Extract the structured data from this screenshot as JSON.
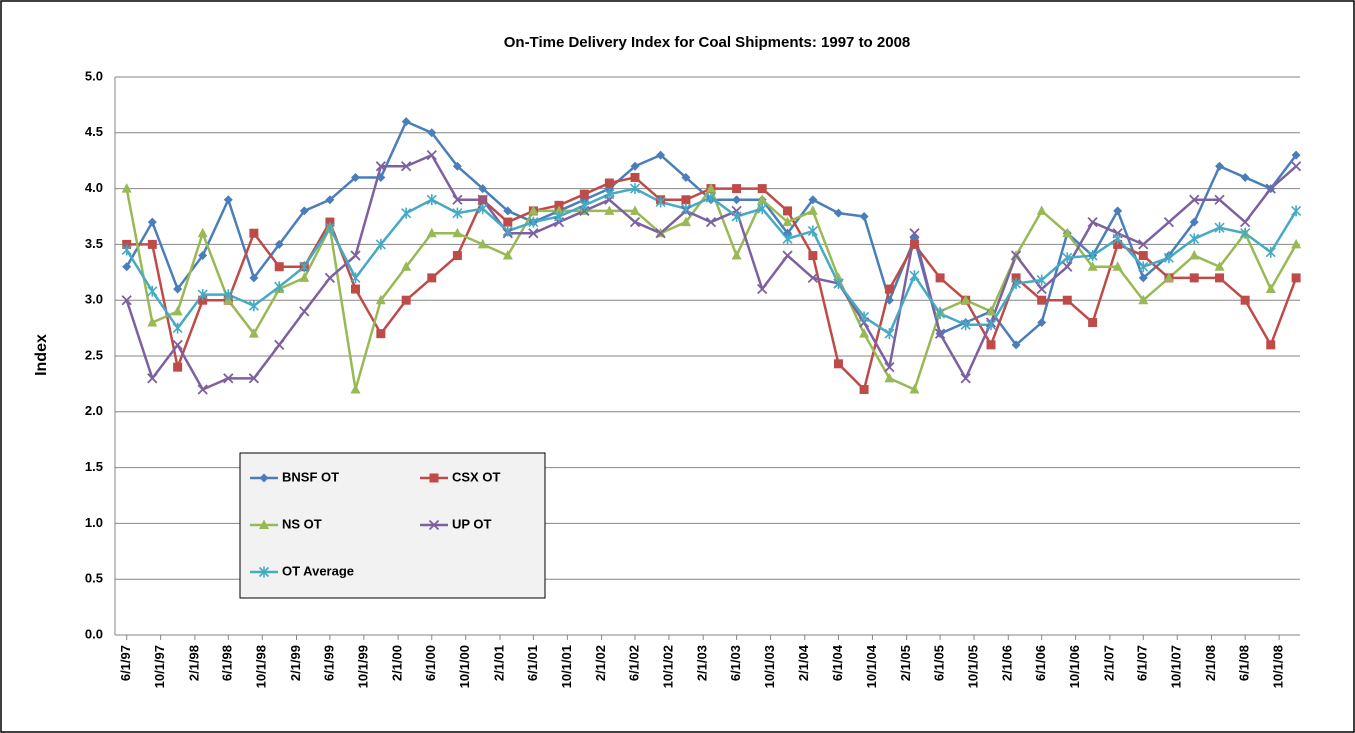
{
  "chart_data": {
    "type": "line",
    "title": "On-Time Delivery Index for Coal Shipments: 1997 to 2008",
    "y_label": "Index",
    "x": [
      "6/1/97",
      "9/1/97",
      "12/1/97",
      "3/1/98",
      "6/1/98",
      "9/1/98",
      "12/1/98",
      "3/1/99",
      "6/1/99",
      "9/1/99",
      "12/1/99",
      "3/1/00",
      "6/1/00",
      "9/1/00",
      "12/1/00",
      "3/1/01",
      "6/1/01",
      "9/1/01",
      "12/1/01",
      "3/1/02",
      "6/1/02",
      "9/1/02",
      "12/1/02",
      "3/1/03",
      "6/1/03",
      "9/1/03",
      "12/1/03",
      "3/1/04",
      "6/1/04",
      "9/1/04",
      "12/1/04",
      "3/1/05",
      "6/1/05",
      "9/1/05",
      "12/1/05",
      "3/1/06",
      "6/1/06",
      "9/1/06",
      "12/1/06",
      "3/1/07",
      "6/1/07",
      "9/1/07",
      "12/1/07",
      "3/1/08",
      "6/1/08",
      "9/1/08",
      "12/1/08"
    ],
    "xlim": [
      "4/20/97",
      "12/15/08"
    ],
    "xticks": [
      "6/1/97",
      "10/1/97",
      "2/1/98",
      "6/1/98",
      "10/1/98",
      "2/1/99",
      "6/1/99",
      "10/1/99",
      "2/1/00",
      "6/1/00",
      "10/1/00",
      "2/1/01",
      "6/1/01",
      "10/1/01",
      "2/1/02",
      "6/1/02",
      "10/1/02",
      "2/1/03",
      "6/1/03",
      "10/1/03",
      "2/1/04",
      "6/1/04",
      "10/1/04",
      "2/1/05",
      "6/1/05",
      "10/1/05",
      "2/1/06",
      "6/1/06",
      "10/1/06",
      "2/1/07",
      "6/1/07",
      "10/1/07",
      "2/1/08",
      "6/1/08",
      "10/1/08"
    ],
    "ylim": [
      0,
      5
    ],
    "yticks": [
      {
        "value": 0,
        "label": "0.0"
      },
      {
        "value": 0.5,
        "label": "0.5"
      },
      {
        "value": 1,
        "label": "1.0"
      },
      {
        "value": 1.5,
        "label": "1.5"
      },
      {
        "value": 2,
        "label": "2.0"
      },
      {
        "value": 2.5,
        "label": "2.5"
      },
      {
        "value": 3,
        "label": "3.0"
      },
      {
        "value": 3.5,
        "label": "3.5"
      },
      {
        "value": 4,
        "label": "4.0"
      },
      {
        "value": 4.5,
        "label": "4.5"
      },
      {
        "value": 5,
        "label": "5.0"
      }
    ],
    "grid": true,
    "legend_position": "lower left",
    "series": [
      {
        "name": "BNSF OT",
        "color": "#4a7ebb",
        "marker": "diamond",
        "values": [
          3.3,
          3.7,
          3.1,
          3.4,
          3.9,
          3.2,
          3.5,
          3.8,
          3.9,
          4.1,
          4.1,
          4.6,
          4.5,
          4.2,
          4.0,
          3.8,
          3.7,
          3.8,
          3.9,
          4.0,
          4.2,
          4.3,
          4.1,
          3.9,
          3.9,
          3.9,
          3.6,
          3.9,
          3.78,
          3.75,
          3.0,
          3.55,
          2.7,
          2.8,
          2.9,
          2.6,
          2.8,
          3.6,
          3.4,
          3.8,
          3.2,
          3.4,
          3.7,
          4.2,
          4.1,
          4.0,
          4.3
        ]
      },
      {
        "name": "CSX OT",
        "color": "#be4b48",
        "marker": "square",
        "values": [
          3.5,
          3.5,
          2.4,
          3.0,
          3.0,
          3.6,
          3.3,
          3.3,
          3.7,
          3.1,
          2.7,
          3.0,
          3.2,
          3.4,
          3.9,
          3.7,
          3.8,
          3.85,
          3.95,
          4.05,
          4.1,
          3.9,
          3.9,
          4.0,
          4.0,
          4.0,
          3.8,
          3.4,
          2.43,
          2.2,
          3.1,
          3.5,
          3.2,
          3.0,
          2.6,
          3.2,
          3.0,
          3.0,
          2.8,
          3.5,
          3.4,
          3.2,
          3.2,
          3.2,
          3.0,
          2.6,
          3.2
        ]
      },
      {
        "name": "NS OT",
        "color": "#98b954",
        "marker": "triangle",
        "values": [
          4.0,
          2.8,
          2.9,
          3.6,
          3.0,
          2.7,
          3.1,
          3.2,
          3.65,
          2.2,
          3.0,
          3.3,
          3.6,
          3.6,
          3.5,
          3.4,
          3.8,
          3.8,
          3.8,
          3.8,
          3.8,
          3.6,
          3.7,
          4.0,
          3.4,
          3.9,
          3.7,
          3.8,
          3.2,
          2.7,
          2.3,
          2.2,
          2.9,
          3.0,
          2.9,
          3.4,
          3.8,
          3.6,
          3.3,
          3.3,
          3.0,
          3.2,
          3.4,
          3.3,
          3.6,
          3.1,
          3.5
        ]
      },
      {
        "name": "UP OT",
        "color": "#7d60a0",
        "marker": "x",
        "values": [
          3.0,
          2.3,
          2.6,
          2.2,
          2.3,
          2.3,
          2.6,
          2.9,
          3.2,
          3.4,
          4.2,
          4.2,
          4.3,
          3.9,
          3.9,
          3.6,
          3.6,
          3.7,
          3.8,
          3.9,
          3.7,
          3.6,
          3.8,
          3.7,
          3.8,
          3.1,
          3.4,
          3.2,
          3.15,
          2.8,
          2.4,
          3.6,
          2.7,
          2.3,
          2.8,
          3.4,
          3.1,
          3.3,
          3.7,
          3.6,
          3.5,
          3.7,
          3.9,
          3.9,
          3.7,
          4.0,
          4.2
        ]
      },
      {
        "name": "OT Average",
        "color": "#46aac5",
        "marker": "asterisk",
        "values": [
          3.45,
          3.08,
          2.75,
          3.05,
          3.05,
          2.95,
          3.12,
          3.3,
          3.65,
          3.2,
          3.5,
          3.78,
          3.9,
          3.78,
          3.82,
          3.62,
          3.7,
          3.75,
          3.85,
          3.95,
          4.0,
          3.88,
          3.82,
          3.92,
          3.75,
          3.82,
          3.55,
          3.62,
          3.15,
          2.85,
          2.7,
          3.22,
          2.88,
          2.78,
          2.78,
          3.15,
          3.18,
          3.38,
          3.4,
          3.55,
          3.3,
          3.38,
          3.55,
          3.65,
          3.6,
          3.43,
          3.8
        ]
      }
    ]
  }
}
